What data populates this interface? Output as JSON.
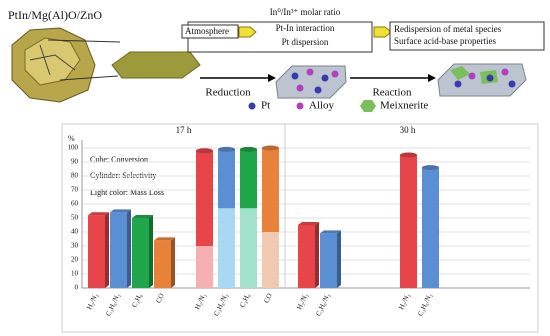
{
  "diagram": {
    "catalyst": "PtIn/Mg(Al)O/ZnO",
    "atmosphere": "Atmosphere",
    "effects": [
      "In⁰/In³⁺ molar ratio",
      "Pt-In interaction",
      "Pt dispersion"
    ],
    "outcomes": [
      "Redispersion of metal species",
      "Surface acid-base properties"
    ],
    "step1": "Reduction",
    "step2": "Reaction",
    "legend": [
      "Pt",
      "Alloy",
      "Meixnerite"
    ]
  },
  "chart_data": {
    "type": "bar",
    "y_label": "%",
    "ylim": [
      0,
      100
    ],
    "yticks": [
      0,
      10,
      20,
      30,
      40,
      50,
      60,
      70,
      80,
      90,
      100
    ],
    "grid": true,
    "annotations": [
      "Cube: Conversion",
      "Cylinder: Selectivity",
      "Light color: Mass Loss"
    ],
    "panels": [
      {
        "title": "17 h",
        "groups": [
          {
            "shape": "cube",
            "categories": [
              "H₂/N₂",
              "C₃H₆/N₂",
              "C₃H₆",
              "CO"
            ],
            "values": [
              52,
              54,
              50,
              34
            ],
            "colors": [
              "#e8454a",
              "#5b8fd4",
              "#1fa64a",
              "#e8823a"
            ]
          },
          {
            "shape": "cylinder",
            "categories": [
              "H₂/N₂",
              "C₃H₆/N₂",
              "C₃H₆",
              "CO"
            ],
            "values": [
              98,
              99,
              99,
              100
            ],
            "mass_loss": [
              30,
              57,
              57,
              40
            ],
            "colors": [
              "#e8454a",
              "#5b8fd4",
              "#1fa64a",
              "#e8823a"
            ],
            "mass_loss_colors": [
              "#f6b0b0",
              "#a8d8f2",
              "#a2e2cc",
              "#efcab0"
            ]
          }
        ]
      },
      {
        "title": "30 h",
        "groups": [
          {
            "shape": "cube",
            "categories": [
              "H₂/N₂",
              "C₃H₆/N₂"
            ],
            "values": [
              45,
              39
            ],
            "colors": [
              "#e8454a",
              "#5b8fd4"
            ]
          },
          {
            "shape": "cylinder",
            "categories": [
              "H₂/N₂",
              "C₃H₆/N₂"
            ],
            "values": [
              95,
              86
            ],
            "colors": [
              "#e8454a",
              "#5b8fd4"
            ]
          }
        ]
      }
    ]
  }
}
